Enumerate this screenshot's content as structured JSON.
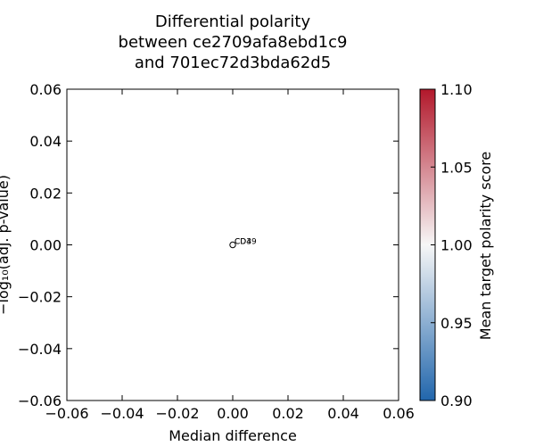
{
  "chart_data": {
    "type": "scatter",
    "title": [
      "Differential polarity",
      "between ce2709afa8ebd1c9",
      "and 701ec72d3bda62d5"
    ],
    "xlabel": "Median difference",
    "ylabel": "−log₁₀(adj. p-value)",
    "xlim": [
      -0.06,
      0.06
    ],
    "ylim": [
      -0.06,
      0.06
    ],
    "xticks": [
      -0.06,
      -0.04,
      -0.02,
      0.0,
      0.02,
      0.04,
      0.06
    ],
    "yticks": [
      -0.06,
      -0.04,
      -0.02,
      0.0,
      0.02,
      0.04,
      0.06
    ],
    "xtick_labels": [
      "−0.06",
      "−0.04",
      "−0.02",
      "0.00",
      "0.02",
      "0.04",
      "0.06"
    ],
    "ytick_labels": [
      "−0.06",
      "−0.04",
      "−0.02",
      "0.00",
      "0.02",
      "0.04",
      "0.06"
    ],
    "points": [
      {
        "x": 0.0,
        "y": 0.0,
        "labels": [
          "CD4",
          "CD39"
        ],
        "color_value": 1.0
      }
    ],
    "colorbar": {
      "label": "Mean target polarity score",
      "range": [
        0.9,
        1.1
      ],
      "ticks": [
        0.9,
        0.95,
        1.0,
        1.05,
        1.1
      ],
      "tick_labels": [
        "0.90",
        "0.95",
        "1.00",
        "1.05",
        "1.10"
      ],
      "colormap": [
        "#2166ac",
        "#f7f7f7",
        "#b2182b"
      ]
    }
  }
}
